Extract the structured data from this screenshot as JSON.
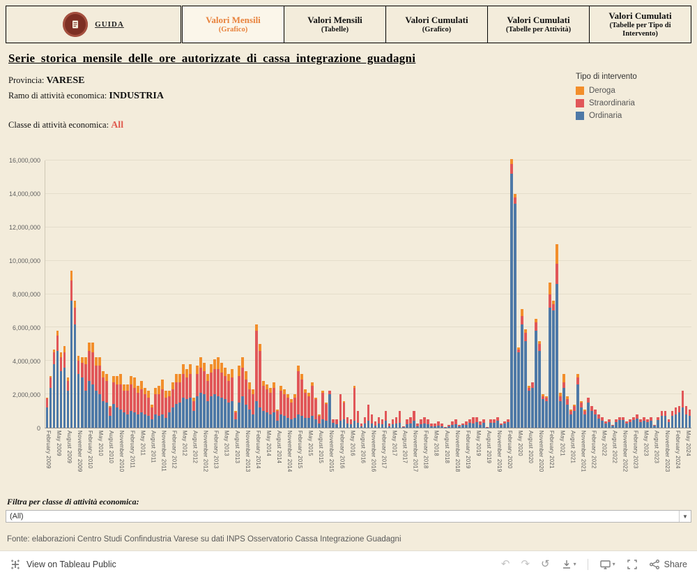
{
  "tabs": {
    "guida_label": "GUIDA",
    "items": [
      {
        "line1": "Valori Mensili",
        "line2": "(Grafico)",
        "active": true
      },
      {
        "line1": "Valori Mensili",
        "line2": "(Tabelle)",
        "active": false
      },
      {
        "line1": "Valori Cumulati",
        "line2": "(Grafico)",
        "active": false
      },
      {
        "line1": "Valori Cumulati",
        "line2": "(Tabelle per Attività)",
        "active": false
      },
      {
        "line1": "Valori Cumulati",
        "line2": "(Tabelle per Tipo di Intervento)",
        "active": false
      }
    ]
  },
  "page_title": "Serie storica mensile delle ore autorizzate di cassa integrazione guadagni",
  "filters_info": {
    "provincia_label": "Provincia:",
    "provincia_value": "VARESE",
    "ramo_label": "Ramo di attività economica:",
    "ramo_value": "INDUSTRIA",
    "classe_label": "Classe di attività economica:",
    "classe_value": "All"
  },
  "legend": {
    "title": "Tipo di intervento",
    "items": [
      {
        "label": "Deroga",
        "color": "#f28e2b"
      },
      {
        "label": "Straordinaria",
        "color": "#e15759"
      },
      {
        "label": "Ordinaria",
        "color": "#4e79a7"
      }
    ]
  },
  "colors": {
    "active_tab": "#e8823c",
    "classe_value": "#e05c50",
    "background": "#f3ecdb"
  },
  "chart_data": {
    "type": "bar",
    "stacked": true,
    "title": "",
    "xlabel": "",
    "ylabel": "",
    "unit_multiplier": 1000000,
    "ylim": [
      0,
      16
    ],
    "ytick_labels": [
      "0",
      "2,000,000",
      "4,000,000",
      "6,000,000",
      "8,000,000",
      "10,000,000",
      "12,000,000",
      "14,000,000",
      "16,000,000"
    ],
    "n_bars": 185,
    "x_tick_every": 3,
    "x_range_note": "monthly bars February 2009 - June 2024, values in millions of hours (estimated)",
    "x_tick_labels": [
      "February 2009",
      "May 2009",
      "August 2009",
      "November 2009",
      "February 2010",
      "May 2010",
      "August 2010",
      "November 2010",
      "February 2011",
      "May 2011",
      "August 2011",
      "November 2011",
      "February 2012",
      "May 2012",
      "August 2012",
      "November 2012",
      "February 2013",
      "May 2013",
      "August 2013",
      "November 2013",
      "February 2014",
      "May 2014",
      "August 2014",
      "November 2014",
      "February 2015",
      "May 2015",
      "August 2015",
      "November 2015",
      "February 2016",
      "May 2016",
      "August 2016",
      "November 2016",
      "February 2017",
      "May 2017",
      "August 2017",
      "November 2017",
      "February 2018",
      "May 2018",
      "August 2018",
      "November 2018",
      "February 2019",
      "May 2019",
      "August 2019",
      "November 2019",
      "February 2020",
      "May 2020",
      "August 2020",
      "November 2020",
      "February 2021",
      "May 2021",
      "August 2021",
      "November 2021",
      "February 2022",
      "May 2022",
      "August 2022",
      "November 2022",
      "February 2023",
      "May 2023",
      "August 2023",
      "November 2023",
      "February 2024",
      "May 2024"
    ],
    "series": [
      {
        "name": "Ordinaria",
        "color": "#4e79a7",
        "values": [
          1.2,
          2.4,
          3.8,
          4.6,
          3.4,
          3.6,
          2.2,
          7.6,
          6.2,
          3.2,
          3.0,
          2.2,
          2.8,
          2.6,
          2.2,
          2.0,
          1.6,
          1.5,
          0.7,
          1.4,
          1.2,
          1.1,
          0.9,
          0.8,
          1.0,
          0.9,
          0.8,
          0.9,
          0.8,
          0.7,
          0.5,
          0.8,
          0.7,
          0.8,
          0.6,
          0.9,
          1.2,
          1.4,
          1.5,
          1.8,
          1.7,
          1.8,
          1.0,
          1.9,
          2.1,
          2.0,
          1.6,
          1.9,
          2.0,
          1.9,
          1.8,
          1.7,
          1.5,
          1.6,
          0.5,
          1.5,
          1.9,
          1.4,
          1.1,
          0.8,
          1.6,
          1.2,
          1.0,
          0.9,
          0.8,
          0.9,
          0.4,
          0.8,
          0.7,
          0.6,
          0.5,
          0.6,
          0.8,
          0.7,
          0.6,
          0.6,
          0.7,
          0.5,
          0.3,
          0.5,
          0.4,
          2.0,
          0.4,
          0.3,
          0.4,
          0.5,
          0.3,
          0.3,
          0.4,
          0.3,
          0.2,
          0.3,
          0.4,
          0.3,
          0.2,
          0.3,
          0.3,
          0.4,
          0.2,
          0.3,
          0.3,
          0.3,
          0.1,
          0.3,
          0.3,
          0.4,
          0.2,
          0.3,
          0.3,
          0.3,
          0.2,
          0.2,
          0.2,
          0.2,
          0.1,
          0.2,
          0.3,
          0.3,
          0.2,
          0.3,
          0.3,
          0.4,
          0.3,
          0.4,
          0.3,
          0.4,
          0.1,
          0.4,
          0.4,
          0.5,
          0.3,
          0.4,
          0.5,
          15.2,
          13.4,
          4.5,
          6.2,
          5.2,
          2.2,
          2.4,
          5.8,
          4.6,
          1.7,
          1.6,
          7.2,
          7.0,
          8.6,
          1.6,
          2.4,
          1.4,
          0.8,
          1.0,
          2.6,
          1.2,
          0.8,
          1.5,
          1.0,
          0.8,
          0.6,
          0.5,
          0.4,
          0.5,
          0.3,
          0.5,
          0.6,
          0.6,
          0.4,
          0.5,
          0.6,
          0.6,
          0.5,
          0.5,
          0.5,
          0.5,
          0.3,
          0.6,
          0.7,
          0.7,
          0.5,
          0.7,
          0.8,
          0.9,
          1.2,
          0.8,
          0.7
        ]
      },
      {
        "name": "Straordinaria",
        "color": "#e15759",
        "values": [
          0.55,
          0.6,
          0.7,
          0.9,
          0.8,
          0.9,
          0.6,
          1.2,
          1.0,
          0.8,
          0.9,
          1.6,
          1.8,
          1.9,
          1.5,
          1.7,
          1.4,
          1.3,
          0.5,
          1.3,
          1.4,
          1.5,
          1.3,
          1.4,
          1.6,
          1.5,
          1.3,
          1.4,
          1.2,
          1.1,
          0.7,
          1.2,
          1.3,
          1.5,
          1.2,
          1.0,
          1.1,
          1.3,
          1.2,
          1.4,
          1.3,
          1.4,
          0.6,
          1.3,
          1.5,
          1.4,
          1.2,
          1.4,
          1.5,
          1.6,
          1.5,
          1.4,
          1.3,
          1.4,
          0.4,
          1.6,
          1.7,
          1.5,
          1.2,
          1.2,
          4.2,
          3.4,
          1.5,
          1.4,
          1.3,
          1.5,
          0.6,
          1.4,
          1.3,
          1.2,
          1.0,
          1.2,
          2.6,
          2.2,
          1.5,
          1.3,
          1.8,
          1.2,
          0.5,
          1.6,
          1.0,
          0.2,
          0.3,
          0.4,
          1.6,
          1.0,
          0.5,
          0.4,
          2.0,
          0.7,
          0.3,
          0.5,
          1.0,
          0.6,
          0.4,
          0.5,
          0.4,
          0.6,
          0.3,
          0.4,
          0.5,
          0.7,
          0.2,
          0.4,
          0.5,
          0.6,
          0.3,
          0.4,
          0.5,
          0.4,
          0.3,
          0.3,
          0.4,
          0.3,
          0.1,
          0.2,
          0.3,
          0.4,
          0.2,
          0.2,
          0.3,
          0.3,
          0.5,
          0.4,
          0.3,
          0.3,
          0.1,
          0.3,
          0.3,
          0.3,
          0.2,
          0.2,
          0.2,
          0.6,
          0.4,
          0.2,
          0.5,
          0.5,
          0.2,
          0.3,
          0.5,
          0.4,
          0.2,
          0.2,
          0.8,
          0.4,
          1.2,
          0.3,
          0.3,
          0.3,
          0.2,
          0.3,
          0.4,
          0.3,
          0.2,
          0.3,
          0.3,
          0.3,
          0.3,
          0.3,
          0.2,
          0.2,
          0.1,
          0.2,
          0.2,
          0.2,
          0.2,
          0.2,
          0.2,
          0.3,
          0.2,
          0.3,
          0.2,
          0.3,
          0.1,
          0.2,
          0.3,
          0.3,
          0.2,
          0.3,
          0.4,
          0.4,
          1.0,
          0.5,
          0.4
        ]
      },
      {
        "name": "Deroga",
        "color": "#f28e2b",
        "values": [
          0.05,
          0.1,
          0.2,
          0.3,
          0.3,
          0.4,
          0.2,
          0.6,
          0.4,
          0.3,
          0.3,
          0.4,
          0.5,
          0.6,
          0.5,
          0.5,
          0.4,
          0.4,
          0.1,
          0.4,
          0.5,
          0.6,
          0.4,
          0.4,
          0.5,
          0.6,
          0.4,
          0.5,
          0.4,
          0.4,
          0.2,
          0.4,
          0.5,
          0.6,
          0.4,
          0.3,
          0.4,
          0.5,
          0.5,
          0.6,
          0.5,
          0.6,
          0.2,
          0.5,
          0.6,
          0.5,
          0.4,
          0.5,
          0.6,
          0.7,
          0.6,
          0.5,
          0.4,
          0.5,
          0.1,
          0.6,
          0.6,
          0.5,
          0.4,
          0.3,
          0.4,
          0.4,
          0.3,
          0.3,
          0.3,
          0.3,
          0.1,
          0.3,
          0.3,
          0.2,
          0.2,
          0.2,
          0.3,
          0.3,
          0.2,
          0.2,
          0.2,
          0.1,
          0.1,
          0.1,
          0.1,
          0,
          0,
          0,
          0,
          0.1,
          0,
          0,
          0.1,
          0,
          0,
          0,
          0,
          0,
          0,
          0,
          0,
          0,
          0,
          0,
          0,
          0,
          0,
          0,
          0,
          0,
          0,
          0,
          0,
          0,
          0,
          0,
          0,
          0,
          0,
          0,
          0,
          0,
          0,
          0,
          0,
          0,
          0,
          0,
          0,
          0,
          0,
          0,
          0,
          0,
          0,
          0,
          0,
          0.3,
          0.2,
          0.1,
          0.4,
          0.2,
          0.1,
          0,
          0.2,
          0.2,
          0.1,
          0.1,
          0.7,
          0.2,
          1.2,
          0.2,
          0.5,
          0.2,
          0.1,
          0.1,
          0.2,
          0.1,
          0.1,
          0,
          0,
          0,
          0,
          0,
          0,
          0,
          0,
          0,
          0,
          0,
          0,
          0,
          0,
          0,
          0,
          0,
          0,
          0,
          0,
          0,
          0,
          0,
          0,
          0,
          0,
          0,
          0,
          0,
          0
        ]
      }
    ]
  },
  "filter_bar": {
    "label": "Filtra per classe di attività economica:",
    "dropdown_value": "(All)",
    "caret": "▼"
  },
  "source_text": "Fonte: elaborazioni Centro Studi Confindustria Varese su dati INPS Osservatorio Cassa Integrazione Guadagni",
  "toolbar": {
    "view_label": "View on Tableau Public",
    "share_label": "Share",
    "icons": {
      "undo": "↶",
      "redo": "↷",
      "replay": "↺",
      "caret": "▾"
    }
  }
}
